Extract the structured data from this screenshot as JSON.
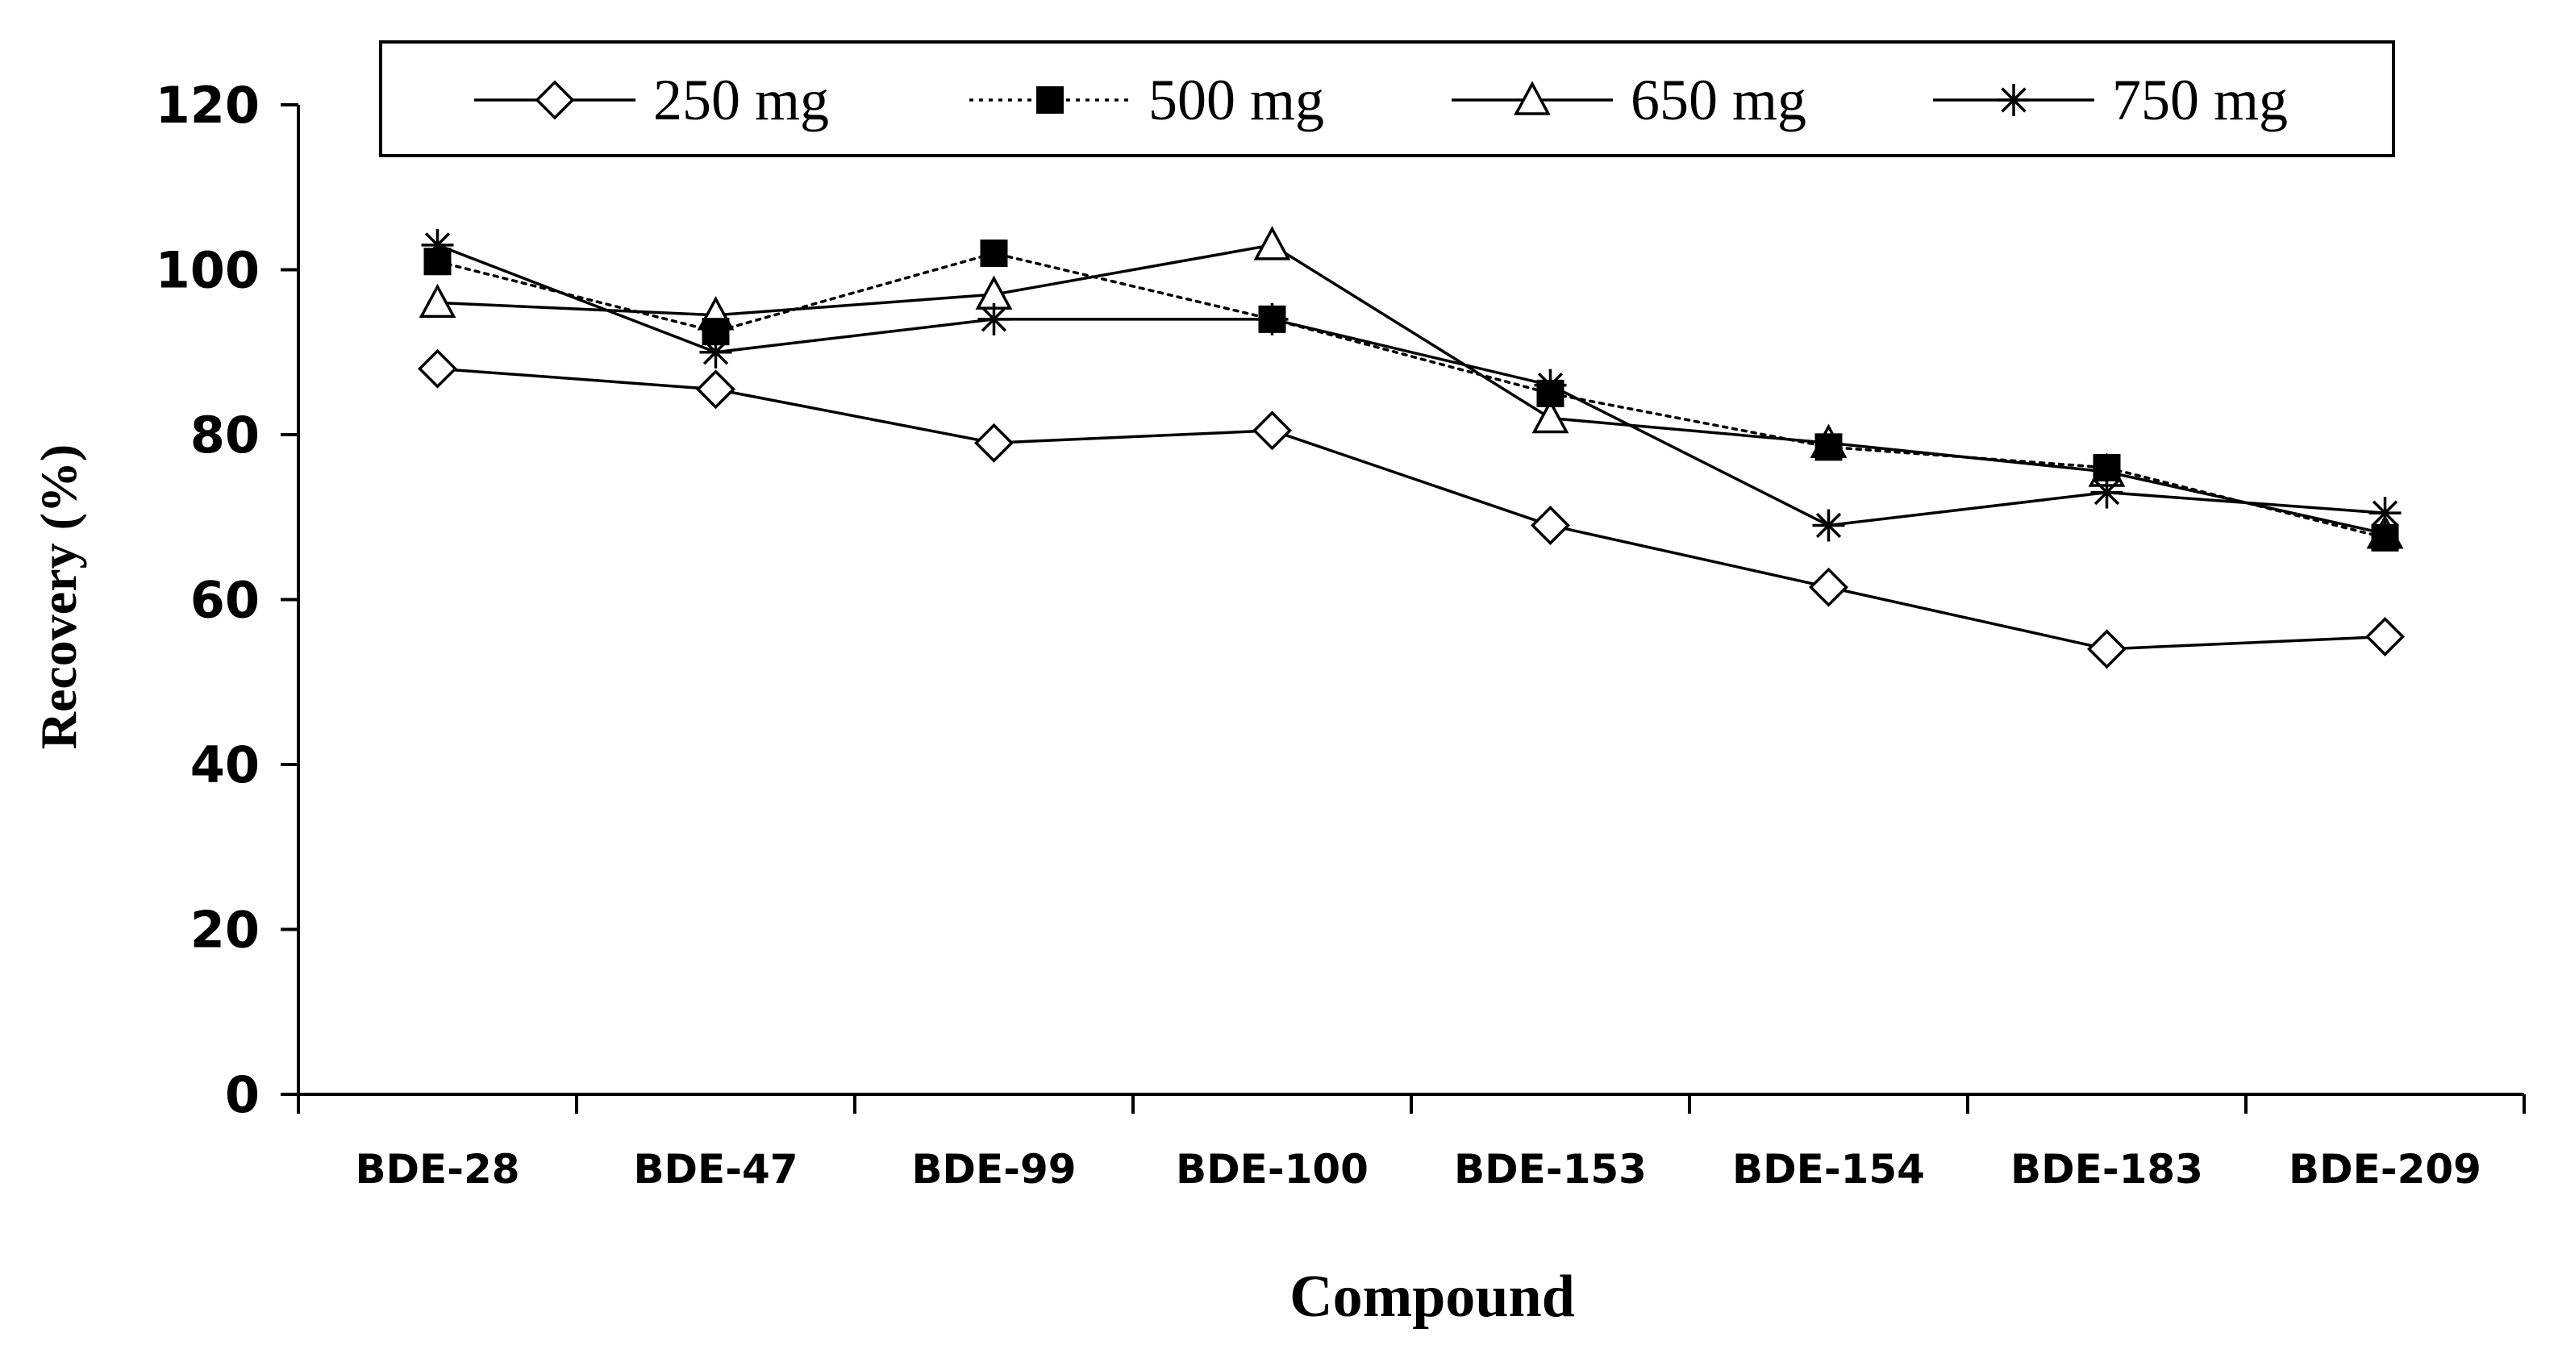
{
  "chart_data": {
    "type": "line",
    "title": "",
    "xlabel": "Compound",
    "ylabel": "Recovery (%)",
    "ylim": [
      0,
      120
    ],
    "yticks": [
      0,
      20,
      40,
      60,
      80,
      100,
      120
    ],
    "categories": [
      "BDE-28",
      "BDE-47",
      "BDE-99",
      "BDE-100",
      "BDE-153",
      "BDE-154",
      "BDE-183",
      "BDE-209"
    ],
    "grid": false,
    "legend_position": "top",
    "series": [
      {
        "name": "250 mg",
        "marker": "diamond-open",
        "line_style": "solid",
        "color": "#000000",
        "values": [
          88,
          85.5,
          79,
          80.5,
          69,
          61.5,
          54,
          55.5
        ]
      },
      {
        "name": "500 mg",
        "marker": "square-filled",
        "line_style": "dotted",
        "color": "#000000",
        "values": [
          101,
          92.5,
          102,
          94,
          85,
          78.5,
          76,
          67.5
        ]
      },
      {
        "name": "650 mg",
        "marker": "triangle-open",
        "line_style": "solid",
        "color": "#000000",
        "values": [
          96,
          94.5,
          97,
          103,
          82,
          79,
          75.5,
          68
        ]
      },
      {
        "name": "750 mg",
        "marker": "star",
        "line_style": "solid",
        "color": "#000000",
        "values": [
          103,
          90,
          94,
          94,
          86,
          69,
          73,
          70.5
        ]
      }
    ]
  }
}
